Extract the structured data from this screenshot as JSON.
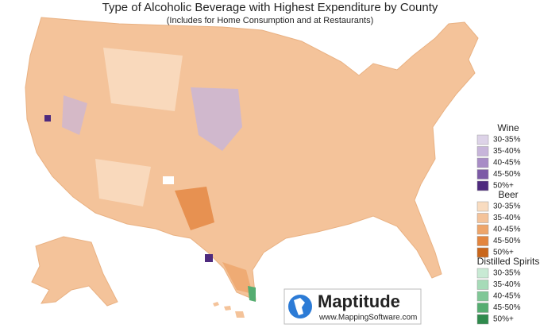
{
  "title": "Type of Alcoholic Beverage with Highest Expenditure by County",
  "subtitle": "(Includes for Home Consumption and at Restaurants)",
  "legend": [
    {
      "name": "Wine",
      "items": [
        {
          "label": "30-35%",
          "color": "#ddd3e8"
        },
        {
          "label": "35-40%",
          "color": "#c7b5da"
        },
        {
          "label": "40-45%",
          "color": "#a88cc6"
        },
        {
          "label": "45-50%",
          "color": "#7c5aa6"
        },
        {
          "label": "50%+",
          "color": "#4e2a7e"
        }
      ]
    },
    {
      "name": "Beer",
      "items": [
        {
          "label": "30-35%",
          "color": "#f9dcc0"
        },
        {
          "label": "35-40%",
          "color": "#f4c39a"
        },
        {
          "label": "40-45%",
          "color": "#eea56a"
        },
        {
          "label": "45-50%",
          "color": "#e3853e"
        },
        {
          "label": "50%+",
          "color": "#c9661b"
        }
      ]
    },
    {
      "name": "Distilled Spirits",
      "items": [
        {
          "label": "30-35%",
          "color": "#c8ead4"
        },
        {
          "label": "35-40%",
          "color": "#a6dbb8"
        },
        {
          "label": "40-45%",
          "color": "#7fc796"
        },
        {
          "label": "45-50%",
          "color": "#55ad71"
        },
        {
          "label": "50%+",
          "color": "#2f8a4d"
        }
      ]
    }
  ],
  "logo": {
    "name": "Maptitude",
    "url": "www.MappingSoftware.com"
  }
}
